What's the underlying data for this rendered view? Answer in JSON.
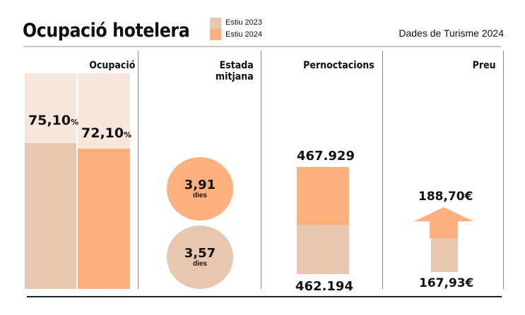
{
  "title": "Ocupació hotelera",
  "source": "Dades de Turisme 2024",
  "colors": {
    "y2023": "#e8c6b0",
    "y2024": "#fcb07d",
    "bg_2023": "#f6e6dc",
    "bg_2024": "#f8e7dc"
  },
  "legend": [
    {
      "label": "Estiu 2023",
      "color": "#e8c6b0"
    },
    {
      "label": "Estiu 2024",
      "color": "#fcb07d"
    }
  ],
  "panels": {
    "ocupacio": {
      "title": "Ocupació",
      "v2023": "75,10",
      "v2024": "72,10",
      "unit": "%"
    },
    "estada": {
      "title_line1": "Estada",
      "title_line2": "mitjana",
      "v2024": "3,91",
      "v2023": "3,57",
      "unit": "dies"
    },
    "pernoctacions": {
      "title": "Pernoctacions",
      "v2024": "467.929",
      "v2023": "462.194"
    },
    "preu": {
      "title": "Preu",
      "v2024": "188,70€",
      "v2023": "167,93€"
    }
  },
  "chart_data": {
    "type": "bar",
    "title": "Ocupació hotelera",
    "subtitle": "Dades de Turisme 2024",
    "legend": [
      "Estiu 2023",
      "Estiu 2024"
    ],
    "legend_position": "top",
    "categories": [
      "Ocupació",
      "Estada mitjana",
      "Pernoctacions",
      "Preu"
    ],
    "series": [
      {
        "name": "Estiu 2023",
        "values": [
          75.1,
          3.57,
          462194,
          167.93
        ]
      },
      {
        "name": "Estiu 2024",
        "values": [
          72.1,
          3.91,
          467929,
          188.7
        ]
      }
    ],
    "units": [
      "%",
      "dies",
      "",
      "€"
    ]
  }
}
